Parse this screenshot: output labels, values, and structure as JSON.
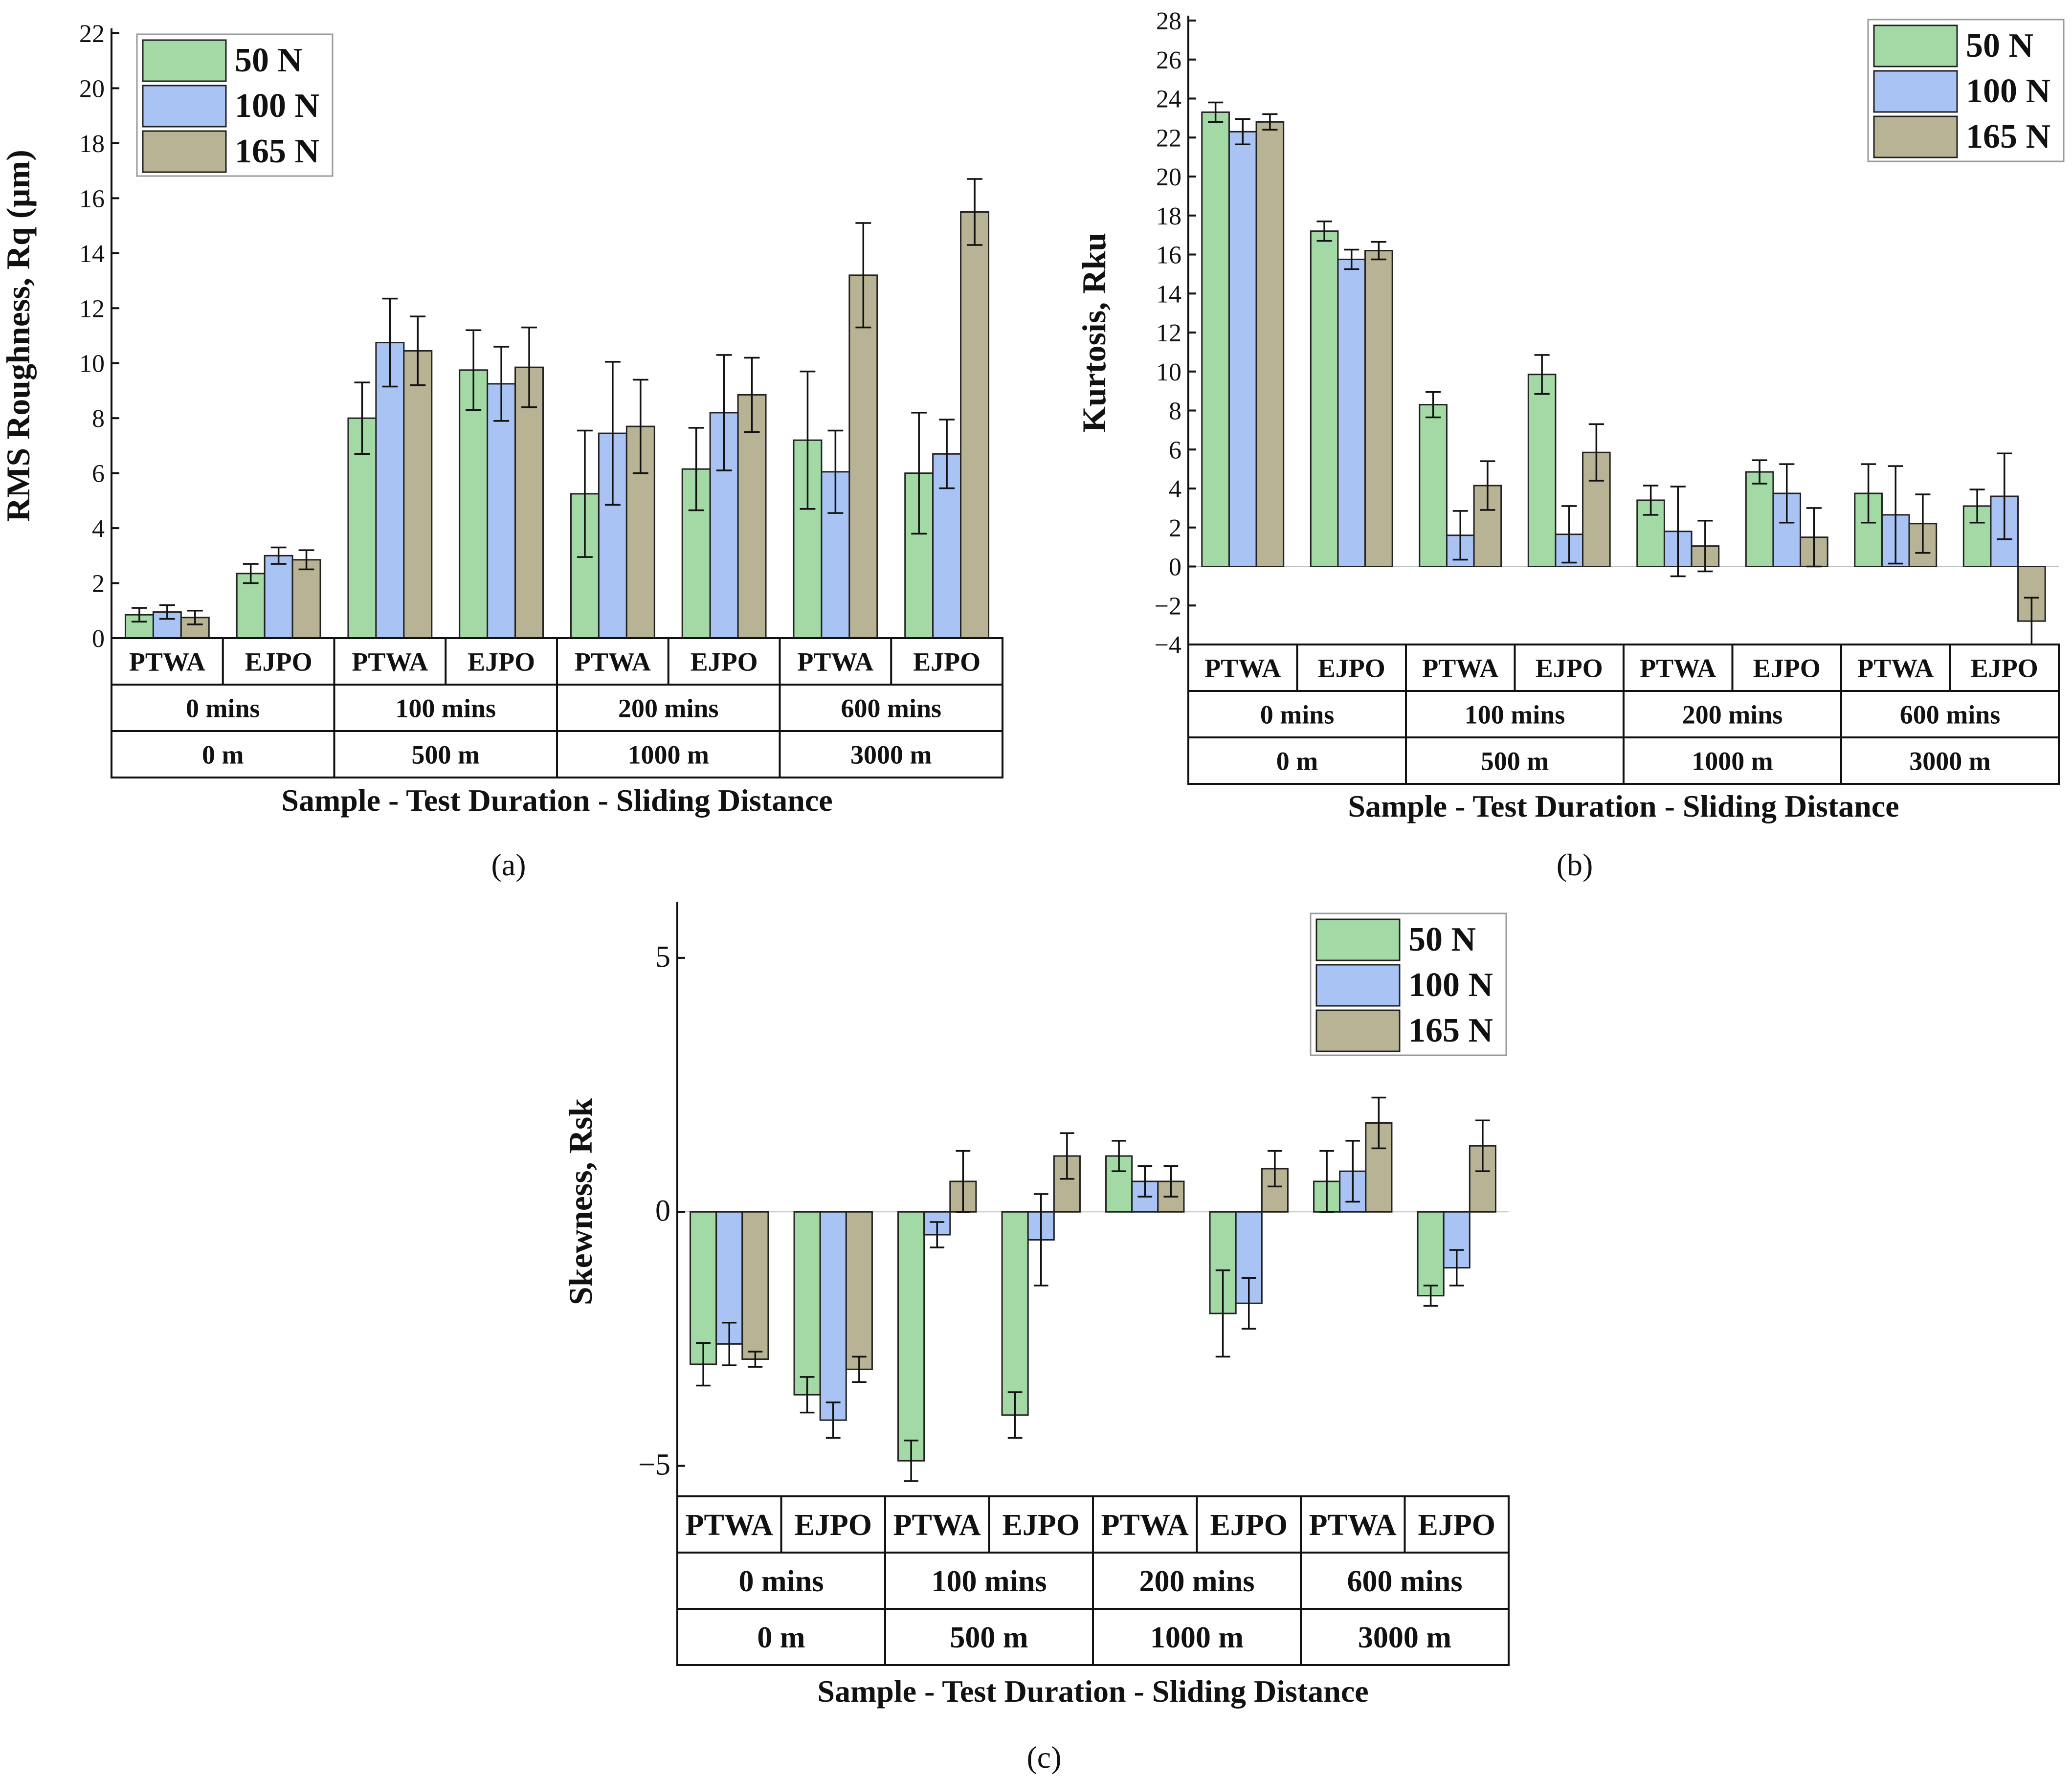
{
  "figure": {
    "legend": [
      {
        "label": "50 N",
        "color": "#a3d9a5"
      },
      {
        "label": "100 N",
        "color": "#a9c3f5"
      },
      {
        "label": "165 N",
        "color": "#b8b394"
      }
    ],
    "xlabel": "Sample - Test Duration - Sliding Distance",
    "samples": [
      "PTWA",
      "EJPO",
      "PTWA",
      "EJPO",
      "PTWA",
      "EJPO",
      "PTWA",
      "EJPO"
    ],
    "durations": [
      "0 mins",
      "100 mins",
      "200 mins",
      "600 mins"
    ],
    "distances": [
      "0 m",
      "500 m",
      "1000 m",
      "3000 m"
    ]
  },
  "chart_data": [
    {
      "type": "bar",
      "panel_label": "(a)",
      "ylabel": "RMS Roughness, Rq (µm)",
      "xlabel": "Sample - Test Duration - Sliding Distance",
      "ylim": [
        0,
        22
      ],
      "yticks": [
        0,
        2,
        4,
        6,
        8,
        10,
        12,
        14,
        16,
        18,
        20,
        22
      ],
      "ytick_labels": [
        "0",
        "2",
        "4",
        "6",
        "8",
        "10",
        "12",
        "14",
        "16",
        "18",
        "20",
        "22"
      ],
      "categories": [
        "PTWA 0 mins 0 m",
        "EJPO 0 mins 0 m",
        "PTWA 100 mins 500 m",
        "EJPO 100 mins 500 m",
        "PTWA 200 mins 1000 m",
        "EJPO 200 mins 1000 m",
        "PTWA 600 mins 3000 m",
        "EJPO 600 mins 3000 m"
      ],
      "series": [
        {
          "name": "50 N",
          "values": [
            0.85,
            2.35,
            8.0,
            9.75,
            5.25,
            6.15,
            7.2,
            6.0
          ],
          "errors": [
            0.25,
            0.35,
            1.3,
            1.45,
            2.3,
            1.5,
            2.5,
            2.2
          ]
        },
        {
          "name": "100 N",
          "values": [
            0.95,
            3.0,
            10.75,
            9.25,
            7.45,
            8.2,
            6.05,
            6.7
          ],
          "errors": [
            0.25,
            0.3,
            1.6,
            1.35,
            2.6,
            2.1,
            1.5,
            1.25
          ]
        },
        {
          "name": "165 N",
          "values": [
            0.75,
            2.85,
            10.45,
            9.85,
            7.7,
            8.85,
            13.2,
            15.5
          ],
          "errors": [
            0.25,
            0.35,
            1.25,
            1.45,
            1.7,
            1.35,
            1.9,
            1.2
          ]
        }
      ]
    },
    {
      "type": "bar",
      "panel_label": "(b)",
      "ylabel": "Kurtosis, Rku",
      "xlabel": "Sample - Test Duration - Sliding Distance",
      "ylim": [
        -4,
        28
      ],
      "yticks": [
        -4,
        -2,
        0,
        2,
        4,
        6,
        8,
        10,
        12,
        14,
        16,
        18,
        20,
        22,
        24,
        26,
        28
      ],
      "ytick_labels": [
        "−4",
        "−2",
        "0",
        "2",
        "4",
        "6",
        "8",
        "10",
        "12",
        "14",
        "16",
        "18",
        "20",
        "22",
        "24",
        "26",
        "28"
      ],
      "categories": [
        "PTWA 0 mins 0 m",
        "EJPO 0 mins 0 m",
        "PTWA 100 mins 500 m",
        "EJPO 100 mins 500 m",
        "PTWA 200 mins 1000 m",
        "EJPO 200 mins 1000 m",
        "PTWA 600 mins 3000 m",
        "EJPO 600 mins 3000 m"
      ],
      "series": [
        {
          "name": "50 N",
          "values": [
            23.3,
            17.2,
            8.3,
            9.85,
            3.4,
            4.85,
            3.75,
            3.1
          ],
          "errors": [
            0.5,
            0.5,
            0.65,
            1.0,
            0.75,
            0.6,
            1.5,
            0.85
          ]
        },
        {
          "name": "100 N",
          "values": [
            22.3,
            15.75,
            1.6,
            1.65,
            1.8,
            3.75,
            2.65,
            3.6
          ],
          "errors": [
            0.65,
            0.5,
            1.25,
            1.45,
            2.3,
            1.5,
            2.5,
            2.2
          ]
        },
        {
          "name": "165 N",
          "values": [
            22.8,
            16.2,
            4.15,
            5.85,
            1.05,
            1.5,
            2.2,
            -2.8
          ],
          "errors": [
            0.4,
            0.45,
            1.25,
            1.45,
            1.3,
            1.5,
            1.5,
            1.2
          ]
        }
      ]
    },
    {
      "type": "bar",
      "panel_label": "(c)",
      "ylabel": "Skewness, Rsk",
      "xlabel": "Sample - Test Duration - Sliding Distance",
      "ylim": [
        -5.6,
        6
      ],
      "yticks": [
        -5,
        0,
        5
      ],
      "ytick_labels": [
        "−5",
        "0",
        "5"
      ],
      "categories": [
        "PTWA 0 mins 0 m",
        "EJPO 0 mins 0 m",
        "PTWA 100 mins 500 m",
        "EJPO 100 mins 500 m",
        "PTWA 200 mins 1000 m",
        "EJPO 200 mins 1000 m",
        "PTWA 600 mins 3000 m",
        "EJPO 600 mins 3000 m"
      ],
      "series": [
        {
          "name": "50 N",
          "values": [
            -3.0,
            -3.6,
            -4.9,
            -4.0,
            1.1,
            -2.0,
            0.6,
            -1.65
          ],
          "errors": [
            0.42,
            0.35,
            0.4,
            0.45,
            0.3,
            0.85,
            0.6,
            0.2
          ]
        },
        {
          "name": "100 N",
          "values": [
            -2.6,
            -4.1,
            -0.45,
            -0.55,
            0.6,
            -1.8,
            0.8,
            -1.1
          ],
          "errors": [
            0.42,
            0.35,
            0.25,
            0.9,
            0.3,
            0.5,
            0.6,
            0.35
          ]
        },
        {
          "name": "165 N",
          "values": [
            -2.9,
            -3.1,
            0.6,
            1.1,
            0.6,
            0.85,
            1.75,
            1.3
          ],
          "errors": [
            0.15,
            0.25,
            0.6,
            0.45,
            0.3,
            0.35,
            0.5,
            0.5
          ]
        }
      ]
    }
  ]
}
